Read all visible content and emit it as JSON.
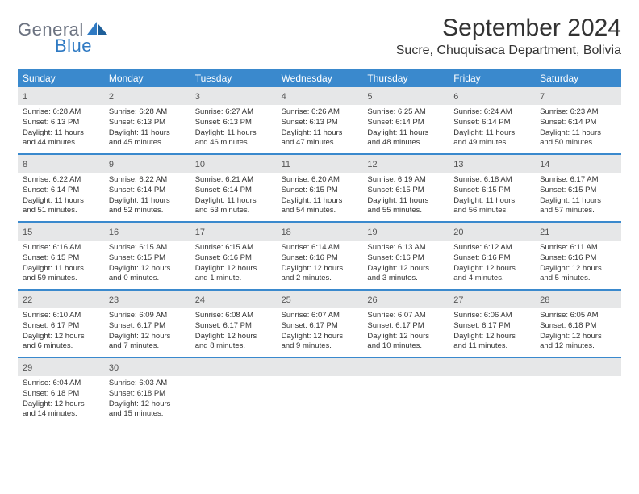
{
  "logo": {
    "text1": "General",
    "text2": "Blue"
  },
  "title": "September 2024",
  "location": "Sucre, Chuquisaca Department, Bolivia",
  "colors": {
    "header_bg": "#3a89cd",
    "daynum_bg": "#e6e7e8",
    "logo_gray": "#6b7280",
    "logo_blue": "#2f7ac3",
    "week_border": "#3a89cd"
  },
  "weekdays": [
    "Sunday",
    "Monday",
    "Tuesday",
    "Wednesday",
    "Thursday",
    "Friday",
    "Saturday"
  ],
  "weeks": [
    [
      {
        "n": "1",
        "sunrise": "Sunrise: 6:28 AM",
        "sunset": "Sunset: 6:13 PM",
        "day1": "Daylight: 11 hours",
        "day2": "and 44 minutes."
      },
      {
        "n": "2",
        "sunrise": "Sunrise: 6:28 AM",
        "sunset": "Sunset: 6:13 PM",
        "day1": "Daylight: 11 hours",
        "day2": "and 45 minutes."
      },
      {
        "n": "3",
        "sunrise": "Sunrise: 6:27 AM",
        "sunset": "Sunset: 6:13 PM",
        "day1": "Daylight: 11 hours",
        "day2": "and 46 minutes."
      },
      {
        "n": "4",
        "sunrise": "Sunrise: 6:26 AM",
        "sunset": "Sunset: 6:13 PM",
        "day1": "Daylight: 11 hours",
        "day2": "and 47 minutes."
      },
      {
        "n": "5",
        "sunrise": "Sunrise: 6:25 AM",
        "sunset": "Sunset: 6:14 PM",
        "day1": "Daylight: 11 hours",
        "day2": "and 48 minutes."
      },
      {
        "n": "6",
        "sunrise": "Sunrise: 6:24 AM",
        "sunset": "Sunset: 6:14 PM",
        "day1": "Daylight: 11 hours",
        "day2": "and 49 minutes."
      },
      {
        "n": "7",
        "sunrise": "Sunrise: 6:23 AM",
        "sunset": "Sunset: 6:14 PM",
        "day1": "Daylight: 11 hours",
        "day2": "and 50 minutes."
      }
    ],
    [
      {
        "n": "8",
        "sunrise": "Sunrise: 6:22 AM",
        "sunset": "Sunset: 6:14 PM",
        "day1": "Daylight: 11 hours",
        "day2": "and 51 minutes."
      },
      {
        "n": "9",
        "sunrise": "Sunrise: 6:22 AM",
        "sunset": "Sunset: 6:14 PM",
        "day1": "Daylight: 11 hours",
        "day2": "and 52 minutes."
      },
      {
        "n": "10",
        "sunrise": "Sunrise: 6:21 AM",
        "sunset": "Sunset: 6:14 PM",
        "day1": "Daylight: 11 hours",
        "day2": "and 53 minutes."
      },
      {
        "n": "11",
        "sunrise": "Sunrise: 6:20 AM",
        "sunset": "Sunset: 6:15 PM",
        "day1": "Daylight: 11 hours",
        "day2": "and 54 minutes."
      },
      {
        "n": "12",
        "sunrise": "Sunrise: 6:19 AM",
        "sunset": "Sunset: 6:15 PM",
        "day1": "Daylight: 11 hours",
        "day2": "and 55 minutes."
      },
      {
        "n": "13",
        "sunrise": "Sunrise: 6:18 AM",
        "sunset": "Sunset: 6:15 PM",
        "day1": "Daylight: 11 hours",
        "day2": "and 56 minutes."
      },
      {
        "n": "14",
        "sunrise": "Sunrise: 6:17 AM",
        "sunset": "Sunset: 6:15 PM",
        "day1": "Daylight: 11 hours",
        "day2": "and 57 minutes."
      }
    ],
    [
      {
        "n": "15",
        "sunrise": "Sunrise: 6:16 AM",
        "sunset": "Sunset: 6:15 PM",
        "day1": "Daylight: 11 hours",
        "day2": "and 59 minutes."
      },
      {
        "n": "16",
        "sunrise": "Sunrise: 6:15 AM",
        "sunset": "Sunset: 6:15 PM",
        "day1": "Daylight: 12 hours",
        "day2": "and 0 minutes."
      },
      {
        "n": "17",
        "sunrise": "Sunrise: 6:15 AM",
        "sunset": "Sunset: 6:16 PM",
        "day1": "Daylight: 12 hours",
        "day2": "and 1 minute."
      },
      {
        "n": "18",
        "sunrise": "Sunrise: 6:14 AM",
        "sunset": "Sunset: 6:16 PM",
        "day1": "Daylight: 12 hours",
        "day2": "and 2 minutes."
      },
      {
        "n": "19",
        "sunrise": "Sunrise: 6:13 AM",
        "sunset": "Sunset: 6:16 PM",
        "day1": "Daylight: 12 hours",
        "day2": "and 3 minutes."
      },
      {
        "n": "20",
        "sunrise": "Sunrise: 6:12 AM",
        "sunset": "Sunset: 6:16 PM",
        "day1": "Daylight: 12 hours",
        "day2": "and 4 minutes."
      },
      {
        "n": "21",
        "sunrise": "Sunrise: 6:11 AM",
        "sunset": "Sunset: 6:16 PM",
        "day1": "Daylight: 12 hours",
        "day2": "and 5 minutes."
      }
    ],
    [
      {
        "n": "22",
        "sunrise": "Sunrise: 6:10 AM",
        "sunset": "Sunset: 6:17 PM",
        "day1": "Daylight: 12 hours",
        "day2": "and 6 minutes."
      },
      {
        "n": "23",
        "sunrise": "Sunrise: 6:09 AM",
        "sunset": "Sunset: 6:17 PM",
        "day1": "Daylight: 12 hours",
        "day2": "and 7 minutes."
      },
      {
        "n": "24",
        "sunrise": "Sunrise: 6:08 AM",
        "sunset": "Sunset: 6:17 PM",
        "day1": "Daylight: 12 hours",
        "day2": "and 8 minutes."
      },
      {
        "n": "25",
        "sunrise": "Sunrise: 6:07 AM",
        "sunset": "Sunset: 6:17 PM",
        "day1": "Daylight: 12 hours",
        "day2": "and 9 minutes."
      },
      {
        "n": "26",
        "sunrise": "Sunrise: 6:07 AM",
        "sunset": "Sunset: 6:17 PM",
        "day1": "Daylight: 12 hours",
        "day2": "and 10 minutes."
      },
      {
        "n": "27",
        "sunrise": "Sunrise: 6:06 AM",
        "sunset": "Sunset: 6:17 PM",
        "day1": "Daylight: 12 hours",
        "day2": "and 11 minutes."
      },
      {
        "n": "28",
        "sunrise": "Sunrise: 6:05 AM",
        "sunset": "Sunset: 6:18 PM",
        "day1": "Daylight: 12 hours",
        "day2": "and 12 minutes."
      }
    ],
    [
      {
        "n": "29",
        "sunrise": "Sunrise: 6:04 AM",
        "sunset": "Sunset: 6:18 PM",
        "day1": "Daylight: 12 hours",
        "day2": "and 14 minutes."
      },
      {
        "n": "30",
        "sunrise": "Sunrise: 6:03 AM",
        "sunset": "Sunset: 6:18 PM",
        "day1": "Daylight: 12 hours",
        "day2": "and 15 minutes."
      },
      {
        "empty": true
      },
      {
        "empty": true
      },
      {
        "empty": true
      },
      {
        "empty": true
      },
      {
        "empty": true
      }
    ]
  ]
}
